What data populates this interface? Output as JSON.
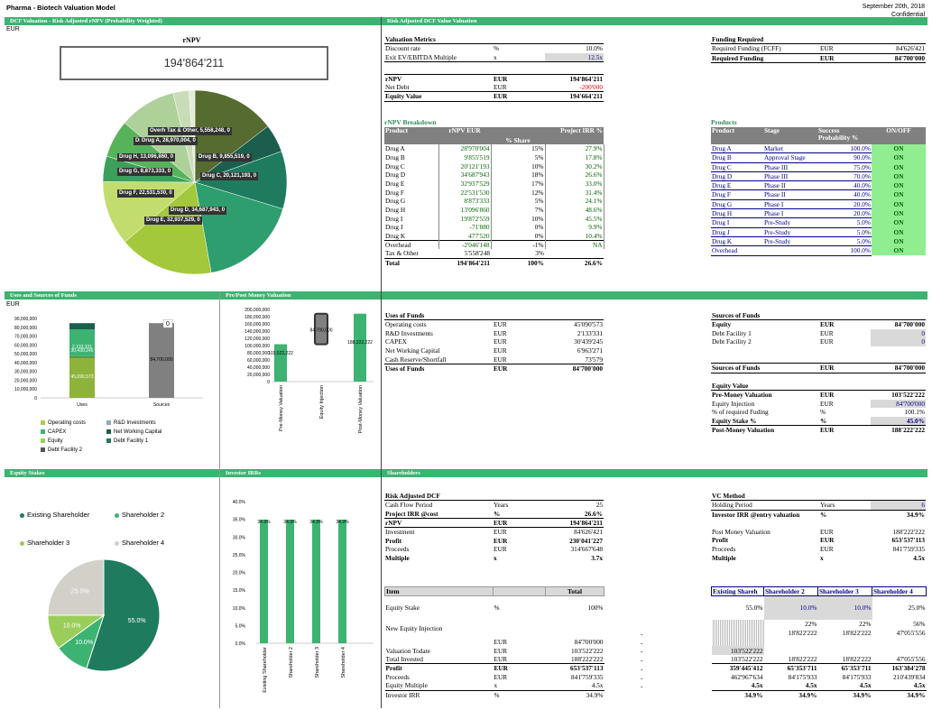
{
  "header": {
    "title": "Pharma - Biotech Valuation Model",
    "date": "September 20th, 2018",
    "confidential": "Confidential"
  },
  "sections": {
    "s1": "DCF Valuation - Risk Adjusted rNPV (Probability Weighted)",
    "s2": "Risk Adjusted DCF Value Valuation",
    "s3": "Uses and Sources of Funds",
    "s4": "Pre/Post Money Valuation",
    "s5": "Equity Stakes",
    "s6": "Investor IRRs",
    "s7": "Shareholders"
  },
  "rnpv_panel": {
    "currency": "EUR",
    "title": "rNPV",
    "value": "194'864'211"
  },
  "pie_labels": [
    {
      "t": "Overhead, -2,046,148, 0"
    },
    {
      "t": "Tax & Other, 5,558,248, 0"
    },
    {
      "t": "Drug I, 19,872,559, 0"
    },
    {
      "t": "Drug A, 28,970,004, 0"
    },
    {
      "t": "Drug H, 13,096,860, 0"
    },
    {
      "t": "Drug B, 9,855,519, 0"
    },
    {
      "t": "Drug G, 8,873,333, 0"
    },
    {
      "t": "Drug C, 20,121,193, 0"
    },
    {
      "t": "Drug F, 22,531,530, 0"
    },
    {
      "t": "Drug D, 34,687,943, 0"
    },
    {
      "t": "Drug E, 32,937,529, 0"
    }
  ],
  "pie_slices": [
    {
      "v": 28970004,
      "c": "#556b2f"
    },
    {
      "v": 9855519,
      "c": "#1b5e4e"
    },
    {
      "v": 20121193,
      "c": "#1e7b5e"
    },
    {
      "v": 34687943,
      "c": "#2e9e6e"
    },
    {
      "v": 32937529,
      "c": "#a3c83b"
    },
    {
      "v": 22531530,
      "c": "#c3dc6e"
    },
    {
      "v": 8873333,
      "c": "#3aa05a"
    },
    {
      "v": 13096860,
      "c": "#57b35a"
    },
    {
      "v": 19872559,
      "c": "#aed19a"
    },
    {
      "v": 5558248,
      "c": "#c9dcb8"
    },
    {
      "v": 2046148,
      "c": "#e3ecd8"
    }
  ],
  "valuation_metrics": {
    "title": "Valuation Metrics",
    "rows": [
      [
        "Discount rate",
        "%",
        "10.0%"
      ],
      [
        "Exit EV/EBITDA Multiple",
        "x",
        "12.5x"
      ]
    ],
    "rnpv": [
      "rNPV",
      "EUR",
      "194'864'211"
    ],
    "netdebt": [
      "Net Debt",
      "EUR",
      "-200'000"
    ],
    "equity": [
      "Equity Value",
      "EUR",
      "194'664'211"
    ]
  },
  "funding": {
    "title": "Funding Required",
    "rows": [
      [
        "Required Funding (FCFF)",
        "EUR",
        "84'626'421"
      ],
      [
        "Required Funding",
        "EUR",
        "84'700'000"
      ]
    ]
  },
  "breakdown": {
    "title": "rNPV Breakdown",
    "headers": [
      "Product",
      "rNPV EUR",
      "% Share",
      "Project IRR %"
    ],
    "rows": [
      [
        "Drug A",
        "28'970'004",
        "15%",
        "27.9%"
      ],
      [
        "Drug B",
        "9'855'519",
        "5%",
        "17.8%"
      ],
      [
        "Drug C",
        "20'121'193",
        "10%",
        "30.2%"
      ],
      [
        "Drug D",
        "34'687'943",
        "18%",
        "26.6%"
      ],
      [
        "Drug E",
        "32'937'529",
        "17%",
        "33.0%"
      ],
      [
        "Drug F",
        "22'531'530",
        "12%",
        "31.4%"
      ],
      [
        "Drug G",
        "8'873'333",
        "5%",
        "24.1%"
      ],
      [
        "Drug H",
        "13'096'860",
        "7%",
        "48.6%"
      ],
      [
        "Drug I",
        "19'872'559",
        "10%",
        "45.5%"
      ],
      [
        "Drug J",
        "-71'880",
        "0%",
        "9.9%"
      ],
      [
        "Drug K",
        "477'520",
        "0%",
        "10.4%"
      ],
      [
        "Overhead",
        "-2'046'148",
        "-1%",
        "NA"
      ],
      [
        "Tax & Other",
        "5'558'248",
        "3%",
        ""
      ],
      [
        "Total",
        "194'864'211",
        "100%",
        "26.6%"
      ]
    ]
  },
  "products": {
    "title": "Products",
    "headers": [
      "Product",
      "Stage",
      "Success Probability %",
      "ON/OFF"
    ],
    "rows": [
      [
        "Drug A",
        "Market",
        "100.0%",
        "ON"
      ],
      [
        "Drug B",
        "Approval Stage",
        "90.0%",
        "ON"
      ],
      [
        "Drug C",
        "Phase III",
        "75.0%",
        "ON"
      ],
      [
        "Drug D",
        "Phase III",
        "70.0%",
        "ON"
      ],
      [
        "Drug E",
        "Phase II",
        "40.0%",
        "ON"
      ],
      [
        "Drug F",
        "Phase II",
        "40.0%",
        "ON"
      ],
      [
        "Drug G",
        "Phase I",
        "20.0%",
        "ON"
      ],
      [
        "Drug H",
        "Phase I",
        "20.0%",
        "ON"
      ],
      [
        "Drug I",
        "Pre-Study",
        "5.0%",
        "ON"
      ],
      [
        "Drug J",
        "Pre-Study",
        "5.0%",
        "ON"
      ],
      [
        "Drug K",
        "Pre-Study",
        "5.0%",
        "ON"
      ],
      [
        "Overhead",
        "",
        "100.0%",
        "ON"
      ]
    ]
  },
  "uses_chart": {
    "currency": "EUR",
    "yticks": [
      "90,000,000",
      "80,000,000",
      "70,000,000",
      "60,000,000",
      "50,000,000",
      "40,000,000",
      "30,000,000",
      "20,000,000",
      "10,000,000",
      "0"
    ],
    "cats": [
      "Uses",
      "Sources"
    ],
    "labels": {
      "u1": "45,090,573",
      "u2": "2,133,331",
      "u3": "30,439,245",
      "s1": "84,700,000",
      "s2": "0"
    },
    "legend": [
      "Operating costs",
      "R&D Investments",
      "CAPEX",
      "Net Working Capital",
      "Equity",
      "Debt Facility 1",
      "Debt Facility 2"
    ]
  },
  "prepost_chart": {
    "yticks": [
      "200,000,000",
      "180,000,000",
      "160,000,000",
      "140,000,000",
      "120,000,000",
      "100,000,000",
      "80,000,000",
      "60,000,000",
      "40,000,000",
      "20,000,000",
      "0"
    ],
    "cats": [
      "Pre-Money Valuation",
      "Equity Injection",
      "Post-Money Valuation"
    ],
    "labels": [
      "103,522,222",
      "84,700,000",
      "188,222,222"
    ]
  },
  "uses": {
    "title": "Uses of Funds",
    "rows": [
      [
        "Operating costs",
        "EUR",
        "45'090'573"
      ],
      [
        "R&D Investments",
        "EUR",
        "2'133'331"
      ],
      [
        "CAPEX",
        "EUR",
        "30'439'245"
      ],
      [
        "Net Working Capital",
        "EUR",
        "6'963'271"
      ],
      [
        "Cash Reserve/Shortfall",
        "EUR",
        "73'579"
      ],
      [
        "Uses of Funds",
        "EUR",
        "84'700'000"
      ]
    ]
  },
  "sources": {
    "title": "Sources of Funds",
    "rows": [
      [
        "Equity",
        "EUR",
        "84'700'000"
      ],
      [
        "Debt Facility 1",
        "EUR",
        "0"
      ],
      [
        "Debt Facility 2",
        "EUR",
        "0"
      ]
    ],
    "total": [
      "Sources of Funds",
      "EUR",
      "84'700'000"
    ]
  },
  "equity_value": {
    "title": "Equity Value",
    "rows": [
      [
        "Pre-Money Valuation",
        "EUR",
        "103'522'222"
      ],
      [
        "Equity Injection",
        "EUR",
        "84'700'000"
      ],
      [
        "% of required Fuding",
        "%",
        "100.1%"
      ],
      [
        "Equity Stake %",
        "%",
        "45.0%"
      ],
      [
        "Post-Money Valuation",
        "EUR",
        "188'222'222"
      ]
    ]
  },
  "equity_pie": {
    "legend": [
      "Existing Shareholder",
      "Shareholder 2",
      "Shareholder 3",
      "Shareholder 4"
    ],
    "labels": [
      "55.0%",
      "10.0%",
      "10.0%",
      "25.0%"
    ],
    "values": [
      55,
      10,
      10,
      25
    ],
    "colors": [
      "#1e7b5e",
      "#3cb371",
      "#9acd5a",
      "#d3cfc9"
    ]
  },
  "irr_chart": {
    "yticks": [
      "40.0%",
      "35.0%",
      "30.0%",
      "25.0%",
      "20.0%",
      "15.0%",
      "10.0%",
      "5.0%",
      "0.0%"
    ],
    "cats": [
      "Existing Shareholder",
      "Shareholder 2",
      "Shareholder 3",
      "Shareholder 4"
    ],
    "values": [
      34.9,
      34.9,
      34.9,
      34.9
    ],
    "labels": [
      "34.9%",
      "34.9%",
      "34.9%",
      "34.9%"
    ]
  },
  "risk_dcf": {
    "title": "Risk Adjusted DCF",
    "rows": [
      [
        "Cash Flow Period",
        "Years",
        "25"
      ],
      [
        "Project IRR @cost",
        "%",
        "26.6%"
      ],
      [
        "rNPV",
        "EUR",
        "194'864'211"
      ],
      [
        "Investment",
        "EUR",
        "84'626'421"
      ],
      [
        "Profit",
        "EUR",
        "230'041'227"
      ],
      [
        "Proceeds",
        "EUR",
        "314'667'648"
      ],
      [
        "Multiple",
        "x",
        "3.7x"
      ]
    ]
  },
  "vc": {
    "title": "VC Method",
    "rows": [
      [
        "Holding Period",
        "Years",
        "6"
      ],
      [
        "Investor IRR @entry valuation",
        "%",
        "34.9%"
      ],
      [
        "Post Money Valuation",
        "EUR",
        "188'222'222"
      ],
      [
        "Profit",
        "EUR",
        "653'537'113"
      ],
      [
        "Proceeds",
        "EUR",
        "841'759'335"
      ],
      [
        "Multiple",
        "x",
        "4.5x"
      ]
    ]
  },
  "shareholders": {
    "headers": [
      "Item",
      "Total",
      "Existing Shareh",
      "Shareholder 2",
      "Shareholder 3",
      "Shareholder 4"
    ],
    "stake": [
      "Equity Stake",
      "%",
      "100%",
      "55.0%",
      "10.0%",
      "10.0%",
      "25.0%"
    ],
    "nei_label": "New Equity Injection",
    "pct": [
      "22%",
      "22%",
      "56%"
    ],
    "amt": [
      "18'822'222",
      "18'822'222",
      "47'055'556"
    ],
    "eur": [
      "EUR",
      "84'700'000",
      "-"
    ],
    "vt": [
      "Valuation Todate",
      "EUR",
      "103'522'222",
      "-",
      "103'522'222"
    ],
    "ti": [
      "Total Invested",
      "EUR",
      "188'222'222",
      "-",
      "103'522'222",
      "18'822'222",
      "18'822'222",
      "47'055'556"
    ],
    "pr": [
      "Profit",
      "EUR",
      "653'537'113",
      "-",
      "359'445'412",
      "65'353'711",
      "65'353'711",
      "163'384'278"
    ],
    "pc": [
      "Proceeds",
      "EUR",
      "841'759'335",
      "-",
      "462'967'634",
      "84'175'933",
      "84'175'933",
      "210'439'834"
    ],
    "em": [
      "Equity Multiple",
      "x",
      "4.5x",
      "-",
      "4.5x",
      "4.5x",
      "4.5x",
      "4.5x"
    ],
    "ir": [
      "Investor IRR",
      "%",
      "34.9%",
      "-",
      "34.9%",
      "34.9%",
      "34.9%",
      "34.9%"
    ]
  }
}
